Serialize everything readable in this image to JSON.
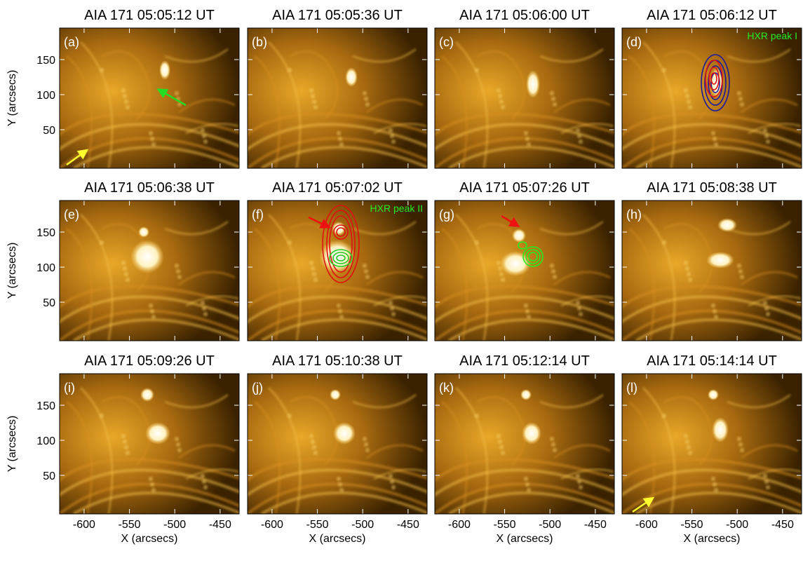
{
  "panels": [
    {
      "title": "AIA 171 05:05:12 UT",
      "label": "(a)"
    },
    {
      "title": "AIA 171 05:05:36 UT",
      "label": "(b)"
    },
    {
      "title": "AIA 171 05:06:00 UT",
      "label": "(c)"
    },
    {
      "title": "AIA 171 05:06:12 UT",
      "label": "(d)",
      "annotation": "HXR peak I"
    },
    {
      "title": "AIA 171 05:06:38 UT",
      "label": "(e)"
    },
    {
      "title": "AIA 171 05:07:02 UT",
      "label": "(f)",
      "annotation": "HXR peak II"
    },
    {
      "title": "AIA 171 05:07:26 UT",
      "label": "(g)"
    },
    {
      "title": "AIA 171 05:08:38 UT",
      "label": "(h)"
    },
    {
      "title": "AIA 171 05:09:26 UT",
      "label": "(i)"
    },
    {
      "title": "AIA 171 05:10:38 UT",
      "label": "(j)"
    },
    {
      "title": "AIA 171 05:12:14 UT",
      "label": "(k)"
    },
    {
      "title": "AIA 171 05:14:14 UT",
      "label": "(l)"
    }
  ],
  "axes": {
    "x_label": "X (arcsecs)",
    "y_label": "Y (arcsecs)",
    "xlim": [
      -627,
      -429
    ],
    "ylim": [
      -5,
      195
    ],
    "xticks": [
      -600,
      -550,
      -500,
      -450
    ],
    "yticks": [
      50,
      100,
      150
    ]
  }
}
